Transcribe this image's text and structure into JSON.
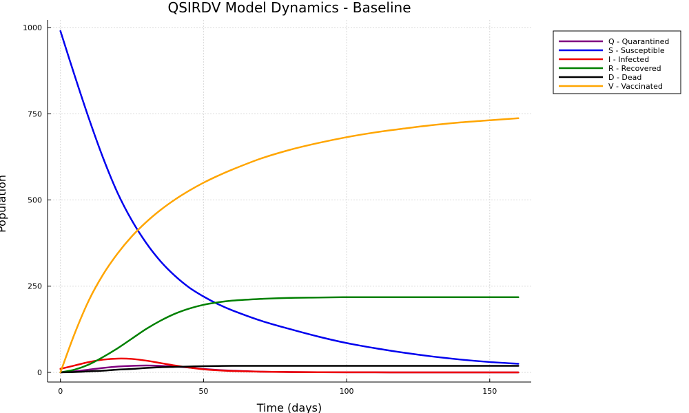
{
  "chart_data": {
    "type": "line",
    "title": "QSIRDV Model Dynamics - Baseline",
    "xlabel": "Time (days)",
    "ylabel": "Population",
    "xlim": [
      -4.5,
      164.5
    ],
    "ylim": [
      -28,
      1022
    ],
    "xticks": [
      0,
      50,
      100,
      150
    ],
    "yticks": [
      0,
      250,
      500,
      750,
      1000
    ],
    "grid": true,
    "legend_position": "top-right-outside",
    "x": [
      0,
      5,
      10,
      15,
      20,
      25,
      30,
      35,
      40,
      45,
      50,
      55,
      60,
      70,
      80,
      90,
      100,
      110,
      120,
      130,
      140,
      150,
      160
    ],
    "series": [
      {
        "name": "Q - Quarantined",
        "color": "#800080",
        "values": [
          0,
          3,
          8,
          13,
          17,
          19,
          20,
          19,
          17,
          14,
          10,
          7,
          5,
          2,
          1,
          0.5,
          0.2,
          0.1,
          0,
          0,
          0,
          0,
          0
        ]
      },
      {
        "name": "S - Susceptible",
        "color": "#0000ee",
        "values": [
          990,
          860,
          735,
          620,
          520,
          440,
          375,
          322,
          280,
          246,
          220,
          198,
          180,
          150,
          126,
          104,
          85,
          70,
          57,
          46,
          37,
          30,
          25
        ]
      },
      {
        "name": "I - Infected",
        "color": "#ee0000",
        "values": [
          10,
          20,
          30,
          37,
          40,
          39,
          34,
          27,
          20,
          14,
          9,
          6,
          4,
          2,
          1,
          0.5,
          0.2,
          0.1,
          0,
          0,
          0,
          0,
          0
        ]
      },
      {
        "name": "R - Recovered",
        "color": "#008000",
        "values": [
          0,
          8,
          23,
          45,
          70,
          98,
          126,
          150,
          170,
          185,
          196,
          203,
          208,
          213,
          216,
          217,
          218,
          218,
          218,
          218,
          218,
          218,
          218
        ]
      },
      {
        "name": "D - Dead",
        "color": "#000000",
        "values": [
          0,
          1,
          3,
          5,
          8,
          10,
          13,
          15,
          16,
          17,
          18,
          18.5,
          19,
          19,
          19,
          19,
          19,
          19,
          19,
          19,
          19,
          19,
          19
        ]
      },
      {
        "name": "V - Vaccinated",
        "color": "#ffa500",
        "values": [
          0,
          113,
          210,
          285,
          345,
          395,
          436,
          471,
          501,
          527,
          550,
          570,
          588,
          620,
          645,
          665,
          682,
          696,
          707,
          717,
          725,
          731,
          737
        ]
      }
    ]
  }
}
